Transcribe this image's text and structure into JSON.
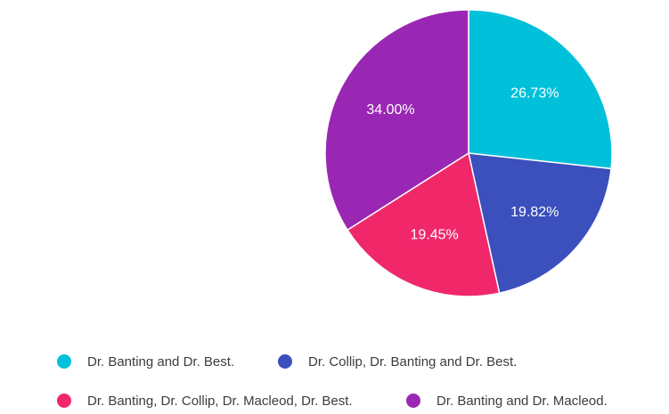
{
  "chart_data": {
    "type": "pie",
    "title": "",
    "slices": [
      {
        "label": "Dr. Banting and Dr. Best.",
        "value": 26.73,
        "display": "26.73%",
        "color": "#00c0da"
      },
      {
        "label": "Dr. Collip, Dr. Banting and Dr. Best.",
        "value": 19.82,
        "display": "19.82%",
        "color": "#3b4fbd"
      },
      {
        "label": "Dr. Banting, Dr. Collip, Dr. Macleod, Dr. Best.",
        "value": 19.45,
        "display": "19.45%",
        "color": "#f0286a"
      },
      {
        "label": "Dr. Banting and Dr. Macleod.",
        "value": 34.0,
        "display": "34.00%",
        "color": "#9a27b4"
      }
    ],
    "start_angle": "top",
    "direction": "clockwise",
    "legend_position": "bottom"
  }
}
